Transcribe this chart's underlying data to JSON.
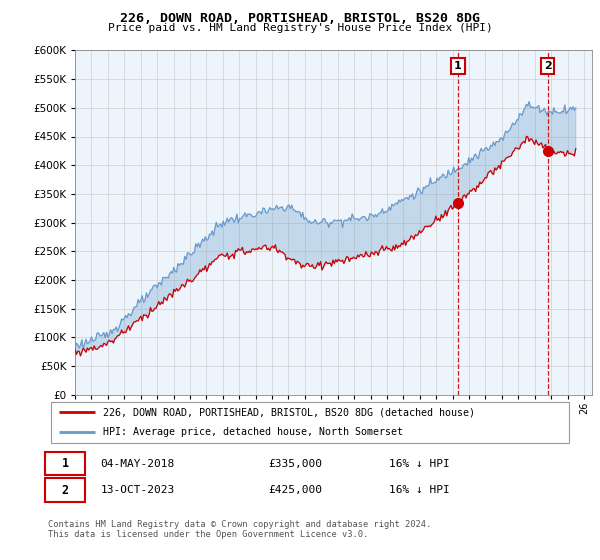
{
  "title": "226, DOWN ROAD, PORTISHEAD, BRISTOL, BS20 8DG",
  "subtitle": "Price paid vs. HM Land Registry's House Price Index (HPI)",
  "legend_line1": "226, DOWN ROAD, PORTISHEAD, BRISTOL, BS20 8DG (detached house)",
  "legend_line2": "HPI: Average price, detached house, North Somerset",
  "annotation1_date": "04-MAY-2018",
  "annotation1_price": "£335,000",
  "annotation1_hpi": "16% ↓ HPI",
  "annotation2_date": "13-OCT-2023",
  "annotation2_price": "£425,000",
  "annotation2_hpi": "16% ↓ HPI",
  "footer": "Contains HM Land Registry data © Crown copyright and database right 2024.\nThis data is licensed under the Open Government Licence v3.0.",
  "hpi_color": "#6699cc",
  "price_color": "#cc0000",
  "vline_color": "#cc0000",
  "annotation_box_color": "#cc0000",
  "fill_color": "#cce0f0",
  "ylim": [
    0,
    600000
  ],
  "yticks": [
    0,
    50000,
    100000,
    150000,
    200000,
    250000,
    300000,
    350000,
    400000,
    450000,
    500000,
    550000,
    600000
  ],
  "sale1_x": 2018.33,
  "sale1_y": 335000,
  "sale2_x": 2023.79,
  "sale2_y": 425000,
  "xmin": 1995,
  "xmax": 2026.5
}
